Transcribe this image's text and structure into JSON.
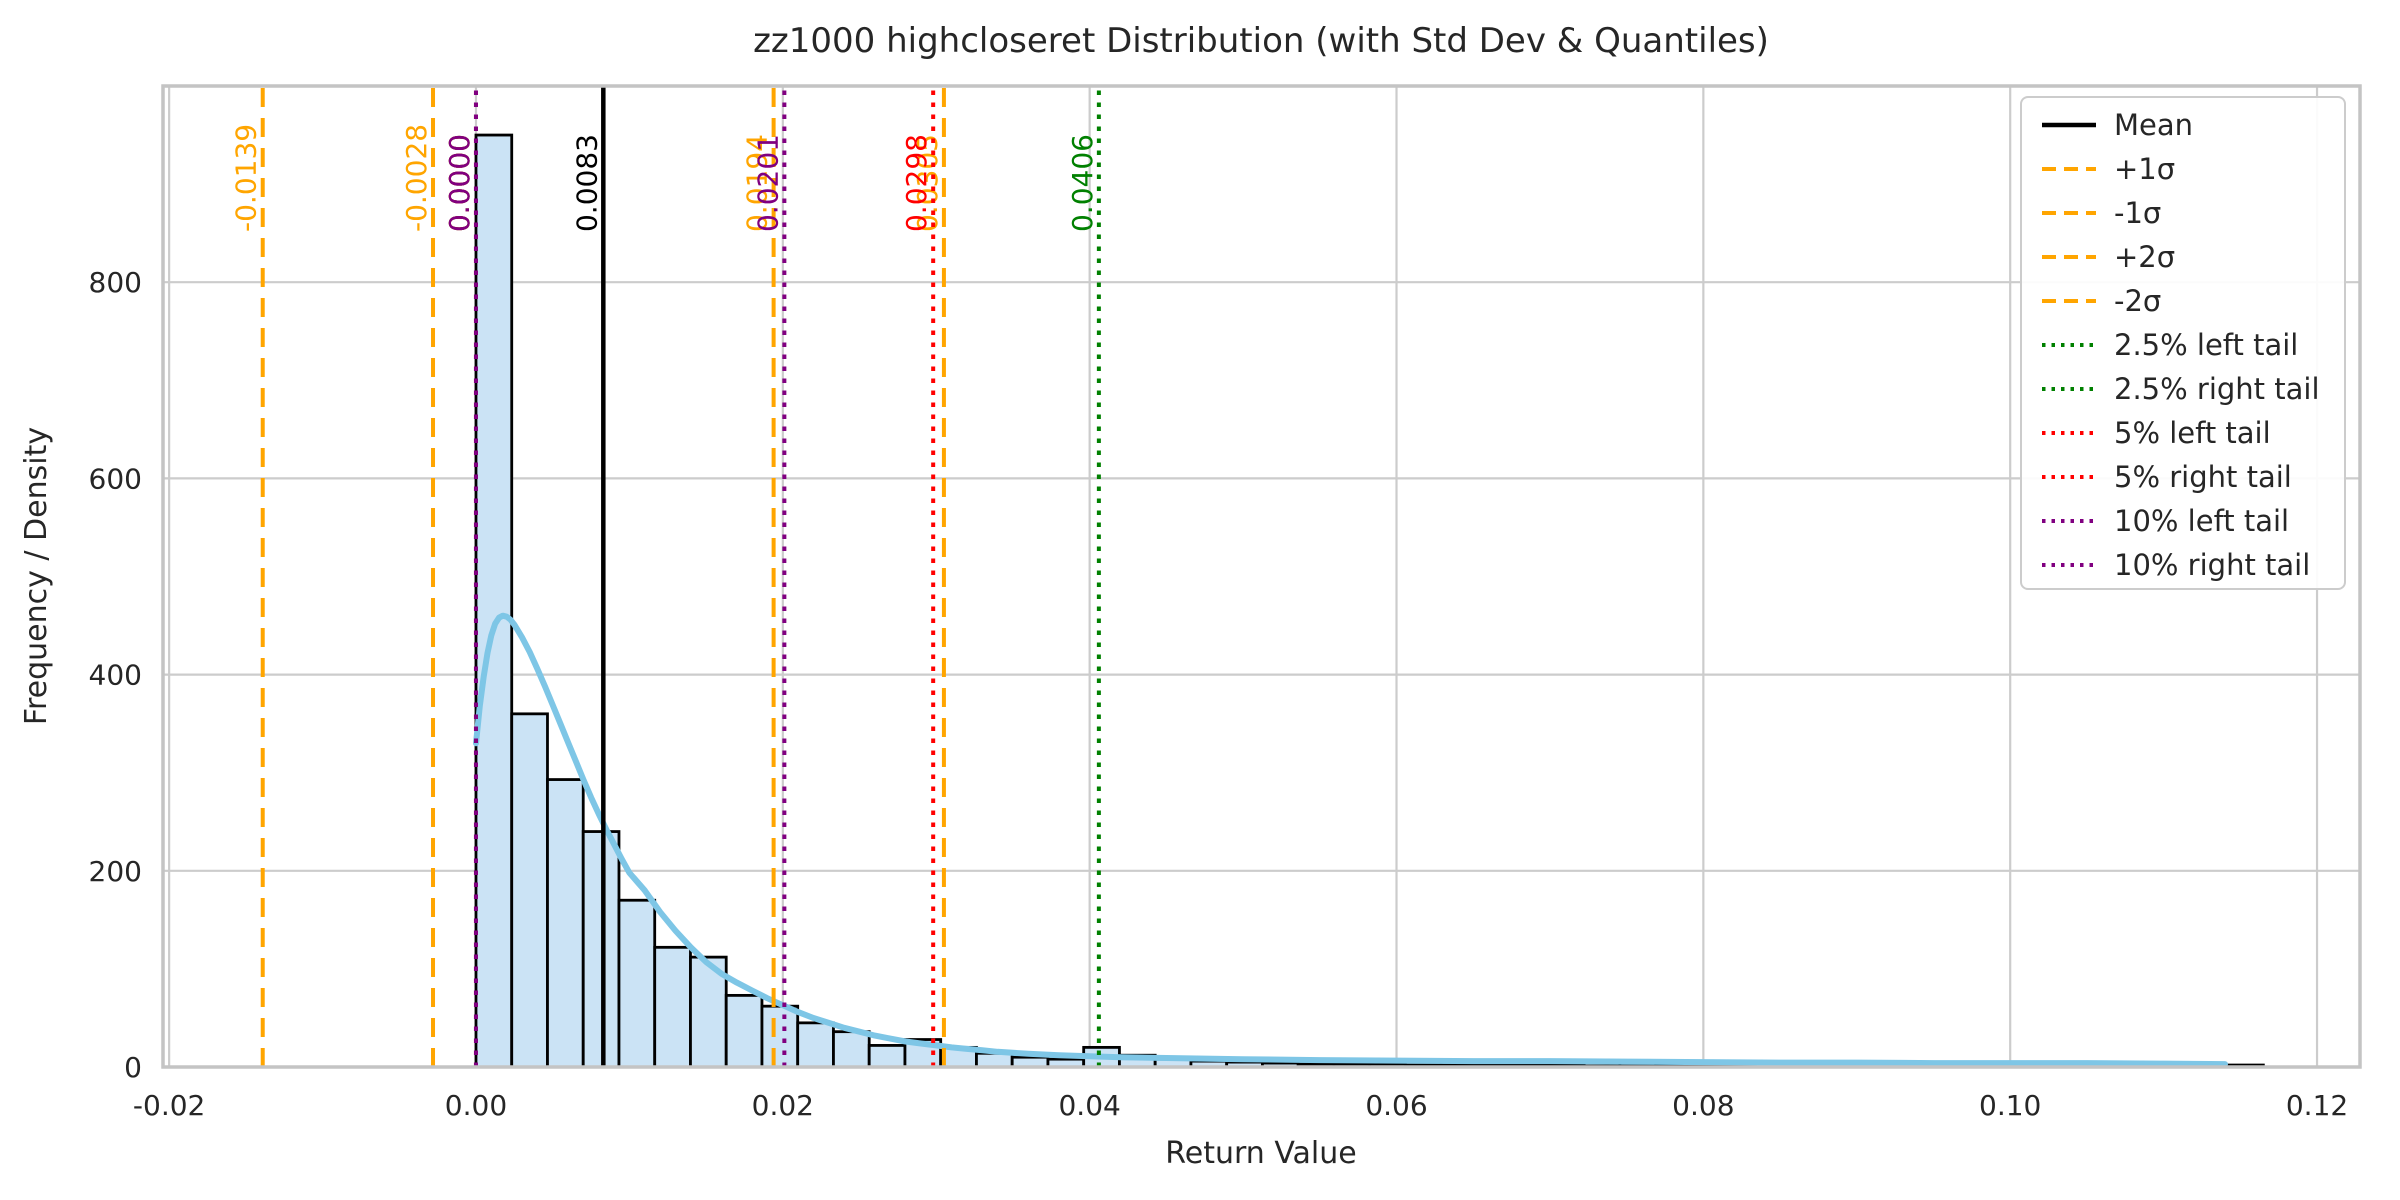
{
  "chart_data": {
    "type": "histogram",
    "title": "zz1000 highcloseret Distribution (with Std Dev & Quantiles)",
    "xlabel": "Return Value",
    "ylabel": "Frequency / Density",
    "grid": true,
    "legend_position": "upper right",
    "xlim": [
      -0.0204,
      0.1228
    ],
    "ylim": [
      0,
      1000
    ],
    "x_tick_values": [
      -0.02,
      0.0,
      0.02,
      0.04,
      0.06,
      0.08,
      0.1,
      0.12
    ],
    "x_tick_labels": [
      "-0.02",
      "0.00",
      "0.02",
      "0.04",
      "0.06",
      "0.08",
      "0.10",
      "0.12"
    ],
    "y_tick_values": [
      0,
      200,
      400,
      600,
      800
    ],
    "y_tick_labels": [
      "0",
      "200",
      "400",
      "600",
      "800"
    ],
    "histogram": {
      "bin_start": 0.0,
      "bin_width": 0.00233,
      "heights": [
        950,
        360,
        293,
        240,
        170,
        122,
        112,
        73,
        62,
        45,
        36,
        22,
        28,
        20,
        14,
        10,
        8,
        20,
        12,
        8,
        6,
        5,
        4,
        3,
        3,
        3,
        2,
        2,
        2,
        2,
        2,
        1,
        1,
        2,
        1,
        1,
        2,
        1,
        1,
        1,
        1,
        1,
        1,
        1,
        1,
        1,
        1,
        1,
        1,
        2
      ],
      "fill_color": "#CBE3F5",
      "edge_color": "#000000"
    },
    "kde": {
      "color": "#7EC6E6",
      "points": [
        [
          0.0,
          330
        ],
        [
          0.00025,
          368
        ],
        [
          0.0005,
          398
        ],
        [
          0.00075,
          422
        ],
        [
          0.001,
          440
        ],
        [
          0.00125,
          452
        ],
        [
          0.0015,
          458
        ],
        [
          0.00175,
          460
        ],
        [
          0.002,
          459
        ],
        [
          0.00225,
          456
        ],
        [
          0.0025,
          451
        ],
        [
          0.003,
          438
        ],
        [
          0.0035,
          423
        ],
        [
          0.004,
          406
        ],
        [
          0.0045,
          388
        ],
        [
          0.005,
          369
        ],
        [
          0.0055,
          350
        ],
        [
          0.006,
          331
        ],
        [
          0.0065,
          312
        ],
        [
          0.007,
          293
        ],
        [
          0.0075,
          275
        ],
        [
          0.008,
          258
        ],
        [
          0.0085,
          242
        ],
        [
          0.009,
          227
        ],
        [
          0.0095,
          212
        ],
        [
          0.01,
          198
        ],
        [
          0.011,
          180
        ],
        [
          0.012,
          158
        ],
        [
          0.013,
          139
        ],
        [
          0.014,
          122
        ],
        [
          0.015,
          107
        ],
        [
          0.016,
          95
        ],
        [
          0.017,
          86
        ],
        [
          0.018,
          78
        ],
        [
          0.019,
          70
        ],
        [
          0.02,
          63
        ],
        [
          0.021,
          56
        ],
        [
          0.022,
          50
        ],
        [
          0.023,
          45
        ],
        [
          0.024,
          40
        ],
        [
          0.025,
          36
        ],
        [
          0.026,
          32
        ],
        [
          0.027,
          29
        ],
        [
          0.028,
          26
        ],
        [
          0.029,
          24
        ],
        [
          0.03,
          22
        ],
        [
          0.031,
          20
        ],
        [
          0.032,
          18.5
        ],
        [
          0.033,
          17
        ],
        [
          0.034,
          15.5
        ],
        [
          0.036,
          13.5
        ],
        [
          0.038,
          12
        ],
        [
          0.04,
          11
        ],
        [
          0.042,
          10
        ],
        [
          0.044,
          9.5
        ],
        [
          0.046,
          9
        ],
        [
          0.048,
          8.5
        ],
        [
          0.05,
          8
        ],
        [
          0.055,
          7
        ],
        [
          0.06,
          6.5
        ],
        [
          0.065,
          6
        ],
        [
          0.07,
          6
        ],
        [
          0.075,
          5.5
        ],
        [
          0.08,
          5
        ],
        [
          0.085,
          4.5
        ],
        [
          0.09,
          4.5
        ],
        [
          0.095,
          4
        ],
        [
          0.1,
          4
        ],
        [
          0.105,
          4
        ],
        [
          0.11,
          3.5
        ],
        [
          0.114,
          3
        ]
      ]
    },
    "vlines": [
      {
        "name": "mean",
        "x": 0.0083,
        "value_text": "0.0083",
        "color": "#000000",
        "style": "solid"
      },
      {
        "name": "plus-1-sigma",
        "x": 0.0194,
        "value_text": "0.0194",
        "color": "#FFA500",
        "style": "dashed"
      },
      {
        "name": "minus-1-sigma",
        "x": -0.0028,
        "value_text": "-0.0028",
        "color": "#FFA500",
        "style": "dashed"
      },
      {
        "name": "plus-2-sigma",
        "x": 0.0305,
        "value_text": "0.0305",
        "color": "#FFA500",
        "style": "dashed"
      },
      {
        "name": "minus-2-sigma",
        "x": -0.0139,
        "value_text": "-0.0139",
        "color": "#FFA500",
        "style": "dashed"
      },
      {
        "name": "tail-2p5-left",
        "x": 0.0,
        "value_text": "0.0000",
        "color": "#008000",
        "style": "dotted"
      },
      {
        "name": "tail-2p5-right",
        "x": 0.0406,
        "value_text": "0.0406",
        "color": "#008000",
        "style": "dotted"
      },
      {
        "name": "tail-5-left",
        "x": 0.0,
        "value_text": "0.0000",
        "color": "#FF0000",
        "style": "dotted"
      },
      {
        "name": "tail-5-right",
        "x": 0.0298,
        "value_text": "0.0298",
        "color": "#FF0000",
        "style": "dotted"
      },
      {
        "name": "tail-10-left",
        "x": 0.0,
        "value_text": "0.0000",
        "color": "#800080",
        "style": "dotted"
      },
      {
        "name": "tail-10-right",
        "x": 0.0201,
        "value_text": "0.0201",
        "color": "#800080",
        "style": "dotted"
      }
    ],
    "legend": [
      {
        "label": "Mean",
        "color": "#000000",
        "style": "solid"
      },
      {
        "label": "+1σ",
        "color": "#FFA500",
        "style": "dashed"
      },
      {
        "label": "-1σ",
        "color": "#FFA500",
        "style": "dashed"
      },
      {
        "label": "+2σ",
        "color": "#FFA500",
        "style": "dashed"
      },
      {
        "label": "-2σ",
        "color": "#FFA500",
        "style": "dashed"
      },
      {
        "label": "2.5% left tail",
        "color": "#008000",
        "style": "dotted"
      },
      {
        "label": "2.5% right tail",
        "color": "#008000",
        "style": "dotted"
      },
      {
        "label": "5% left tail",
        "color": "#FF0000",
        "style": "dotted"
      },
      {
        "label": "5% right tail",
        "color": "#FF0000",
        "style": "dotted"
      },
      {
        "label": "10% left tail",
        "color": "#800080",
        "style": "dotted"
      },
      {
        "label": "10% right tail",
        "color": "#800080",
        "style": "dotted"
      }
    ],
    "colors": {
      "grid": "#cccccc",
      "spine": "#c4c4c4",
      "text": "#262626",
      "background": "#ffffff"
    }
  }
}
